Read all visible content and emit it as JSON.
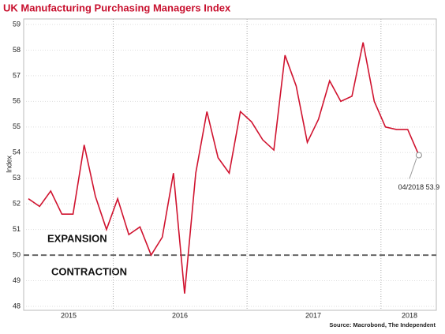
{
  "chart_data": {
    "type": "line",
    "title": "UK Manufacturing Purchasing Managers Index",
    "y_label": "Index",
    "source": "Source: Macrobond, The Independent",
    "annotations": [
      "EXPANSION",
      "CONTRACTION"
    ],
    "last_point_label": "04/2018 53.9",
    "year_labels": [
      "2015",
      "2016",
      "2017",
      "2018"
    ],
    "categories": [
      null,
      null,
      null,
      null,
      null,
      null,
      null,
      null,
      null,
      null,
      null,
      null,
      null,
      null,
      null,
      null,
      null,
      null,
      null,
      null,
      null,
      null,
      null,
      null,
      null,
      null,
      null,
      null,
      null,
      null,
      null,
      null,
      null,
      null,
      null,
      null
    ],
    "series": [
      {
        "name": "UK Manufacturing PMI",
        "color": "#d0132f",
        "values": [
          52.2,
          51.9,
          52.5,
          51.6,
          51.6,
          54.3,
          52.3,
          51.0,
          52.2,
          50.8,
          51.1,
          50.0,
          50.7,
          53.2,
          48.5,
          53.2,
          55.6,
          53.8,
          53.2,
          55.6,
          55.2,
          54.5,
          54.1,
          57.8,
          56.6,
          54.4,
          55.3,
          56.8,
          56.0,
          56.2,
          58.3,
          56.0,
          55.0,
          54.9,
          54.9,
          53.9
        ]
      }
    ],
    "reference_line": 50,
    "ylim": [
      48,
      59
    ],
    "yticks": [
      48,
      49,
      50,
      51,
      52,
      53,
      54,
      55,
      56,
      57,
      58,
      59
    ],
    "grid": true
  }
}
